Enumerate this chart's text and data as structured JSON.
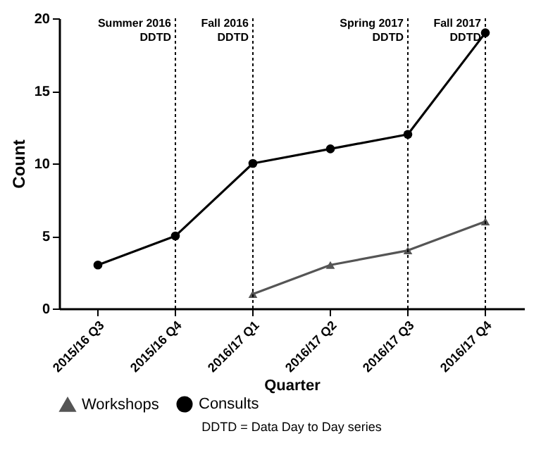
{
  "chart_data": {
    "type": "line",
    "xlabel": "Quarter",
    "ylabel": "Count",
    "categories": [
      "2015/16 Q3",
      "2015/16 Q4",
      "2016/17 Q1",
      "2016/17 Q2",
      "2016/17 Q3",
      "2016/17 Q4"
    ],
    "series": [
      {
        "name": "Workshops",
        "color": "#555555",
        "marker": "triangle",
        "values": [
          null,
          null,
          1,
          3,
          4,
          6
        ]
      },
      {
        "name": "Consults",
        "color": "#000000",
        "marker": "circle",
        "values": [
          3,
          5,
          10,
          11,
          12,
          19
        ]
      }
    ],
    "ylim": [
      0,
      20
    ],
    "yticks": [
      0,
      5,
      10,
      15,
      20
    ],
    "grid": false,
    "legend": "bottom",
    "line_style": "solid",
    "ref_lines": [
      {
        "axis": "x",
        "value": "2015/16 Q4",
        "label": "Summer 2016\nDDTD",
        "line_style": "dotted"
      },
      {
        "axis": "x",
        "value": "2016/17 Q1",
        "label": "Fall 2016\nDDTD",
        "line_style": "dotted"
      },
      {
        "axis": "x",
        "value": "2016/17 Q3",
        "label": "Spring 2017\nDDTD",
        "line_style": "dotted"
      },
      {
        "axis": "x",
        "value": "2016/17 Q4",
        "label": "Fall 2017\nDDTD",
        "line_style": "dotted"
      }
    ],
    "annotations": [
      "DDTD = Data Day to Day series"
    ]
  }
}
